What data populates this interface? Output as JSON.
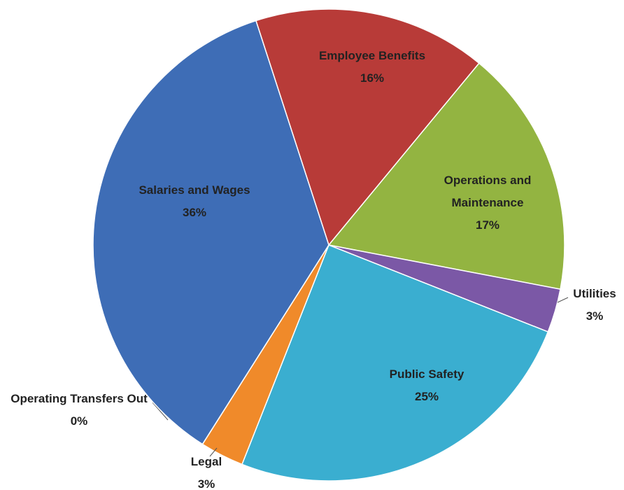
{
  "chart_data": {
    "type": "pie",
    "categories": [
      "Employee Benefits",
      "Operations and Maintenance",
      "Utilities",
      "Public Safety",
      "Legal",
      "Operating Transfers Out",
      "Salaries and Wages"
    ],
    "values": [
      16,
      17,
      3,
      25,
      3,
      0,
      36
    ],
    "value_labels": [
      "16%",
      "17%",
      "3%",
      "25%",
      "3%",
      "0%",
      "36%"
    ],
    "colors": [
      "#b83b38",
      "#93b441",
      "#7b58a6",
      "#3aaed0",
      "#f08a2a",
      "#8c8c8c",
      "#3e6db6"
    ]
  }
}
